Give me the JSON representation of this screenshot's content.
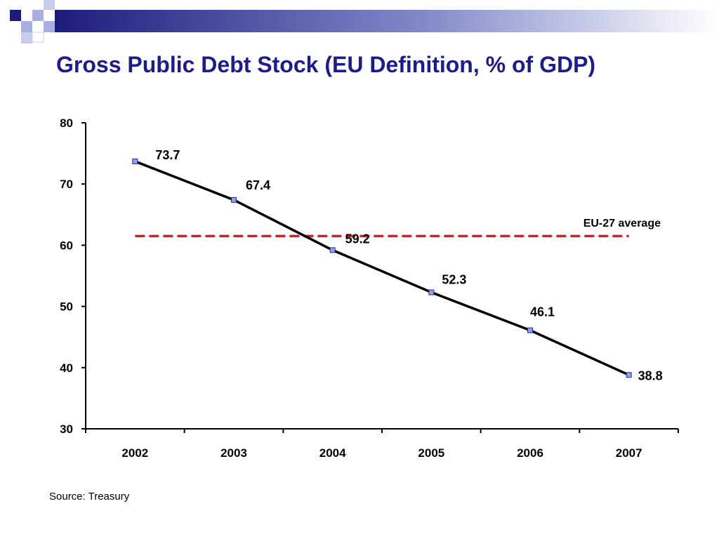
{
  "slide": {
    "title": "Gross Public Debt Stock (EU Definition, % of GDP)",
    "source": "Source: Treasury"
  },
  "colors": {
    "title": "#1c1c8c",
    "series_line": "#000000",
    "marker_fill": "#8f9fe8",
    "marker_stroke": "#2a2a9a",
    "reference_line": "#d42020",
    "deco_navy": "#1c1c7c",
    "deco_light": "#a8aee0"
  },
  "chart_data": {
    "type": "line",
    "title": "",
    "xlabel": "",
    "ylabel": "",
    "categories": [
      "2002",
      "2003",
      "2004",
      "2005",
      "2006",
      "2007"
    ],
    "series": [
      {
        "values": [
          73.7,
          67.4,
          59.2,
          52.3,
          46.1,
          38.8
        ],
        "data_labels": [
          "73.7",
          "67.4",
          "59.2",
          "52.3",
          "46.1",
          "38.8"
        ]
      }
    ],
    "reference_line": {
      "label": "EU-27 average",
      "value": 61.5,
      "style": "dashed"
    },
    "ylim": [
      30,
      80
    ],
    "yticks": [
      30,
      40,
      50,
      60,
      70,
      80
    ],
    "ytick_labels": [
      "30",
      "40",
      "50",
      "60",
      "70",
      "80"
    ],
    "grid": false,
    "legend": "none"
  }
}
